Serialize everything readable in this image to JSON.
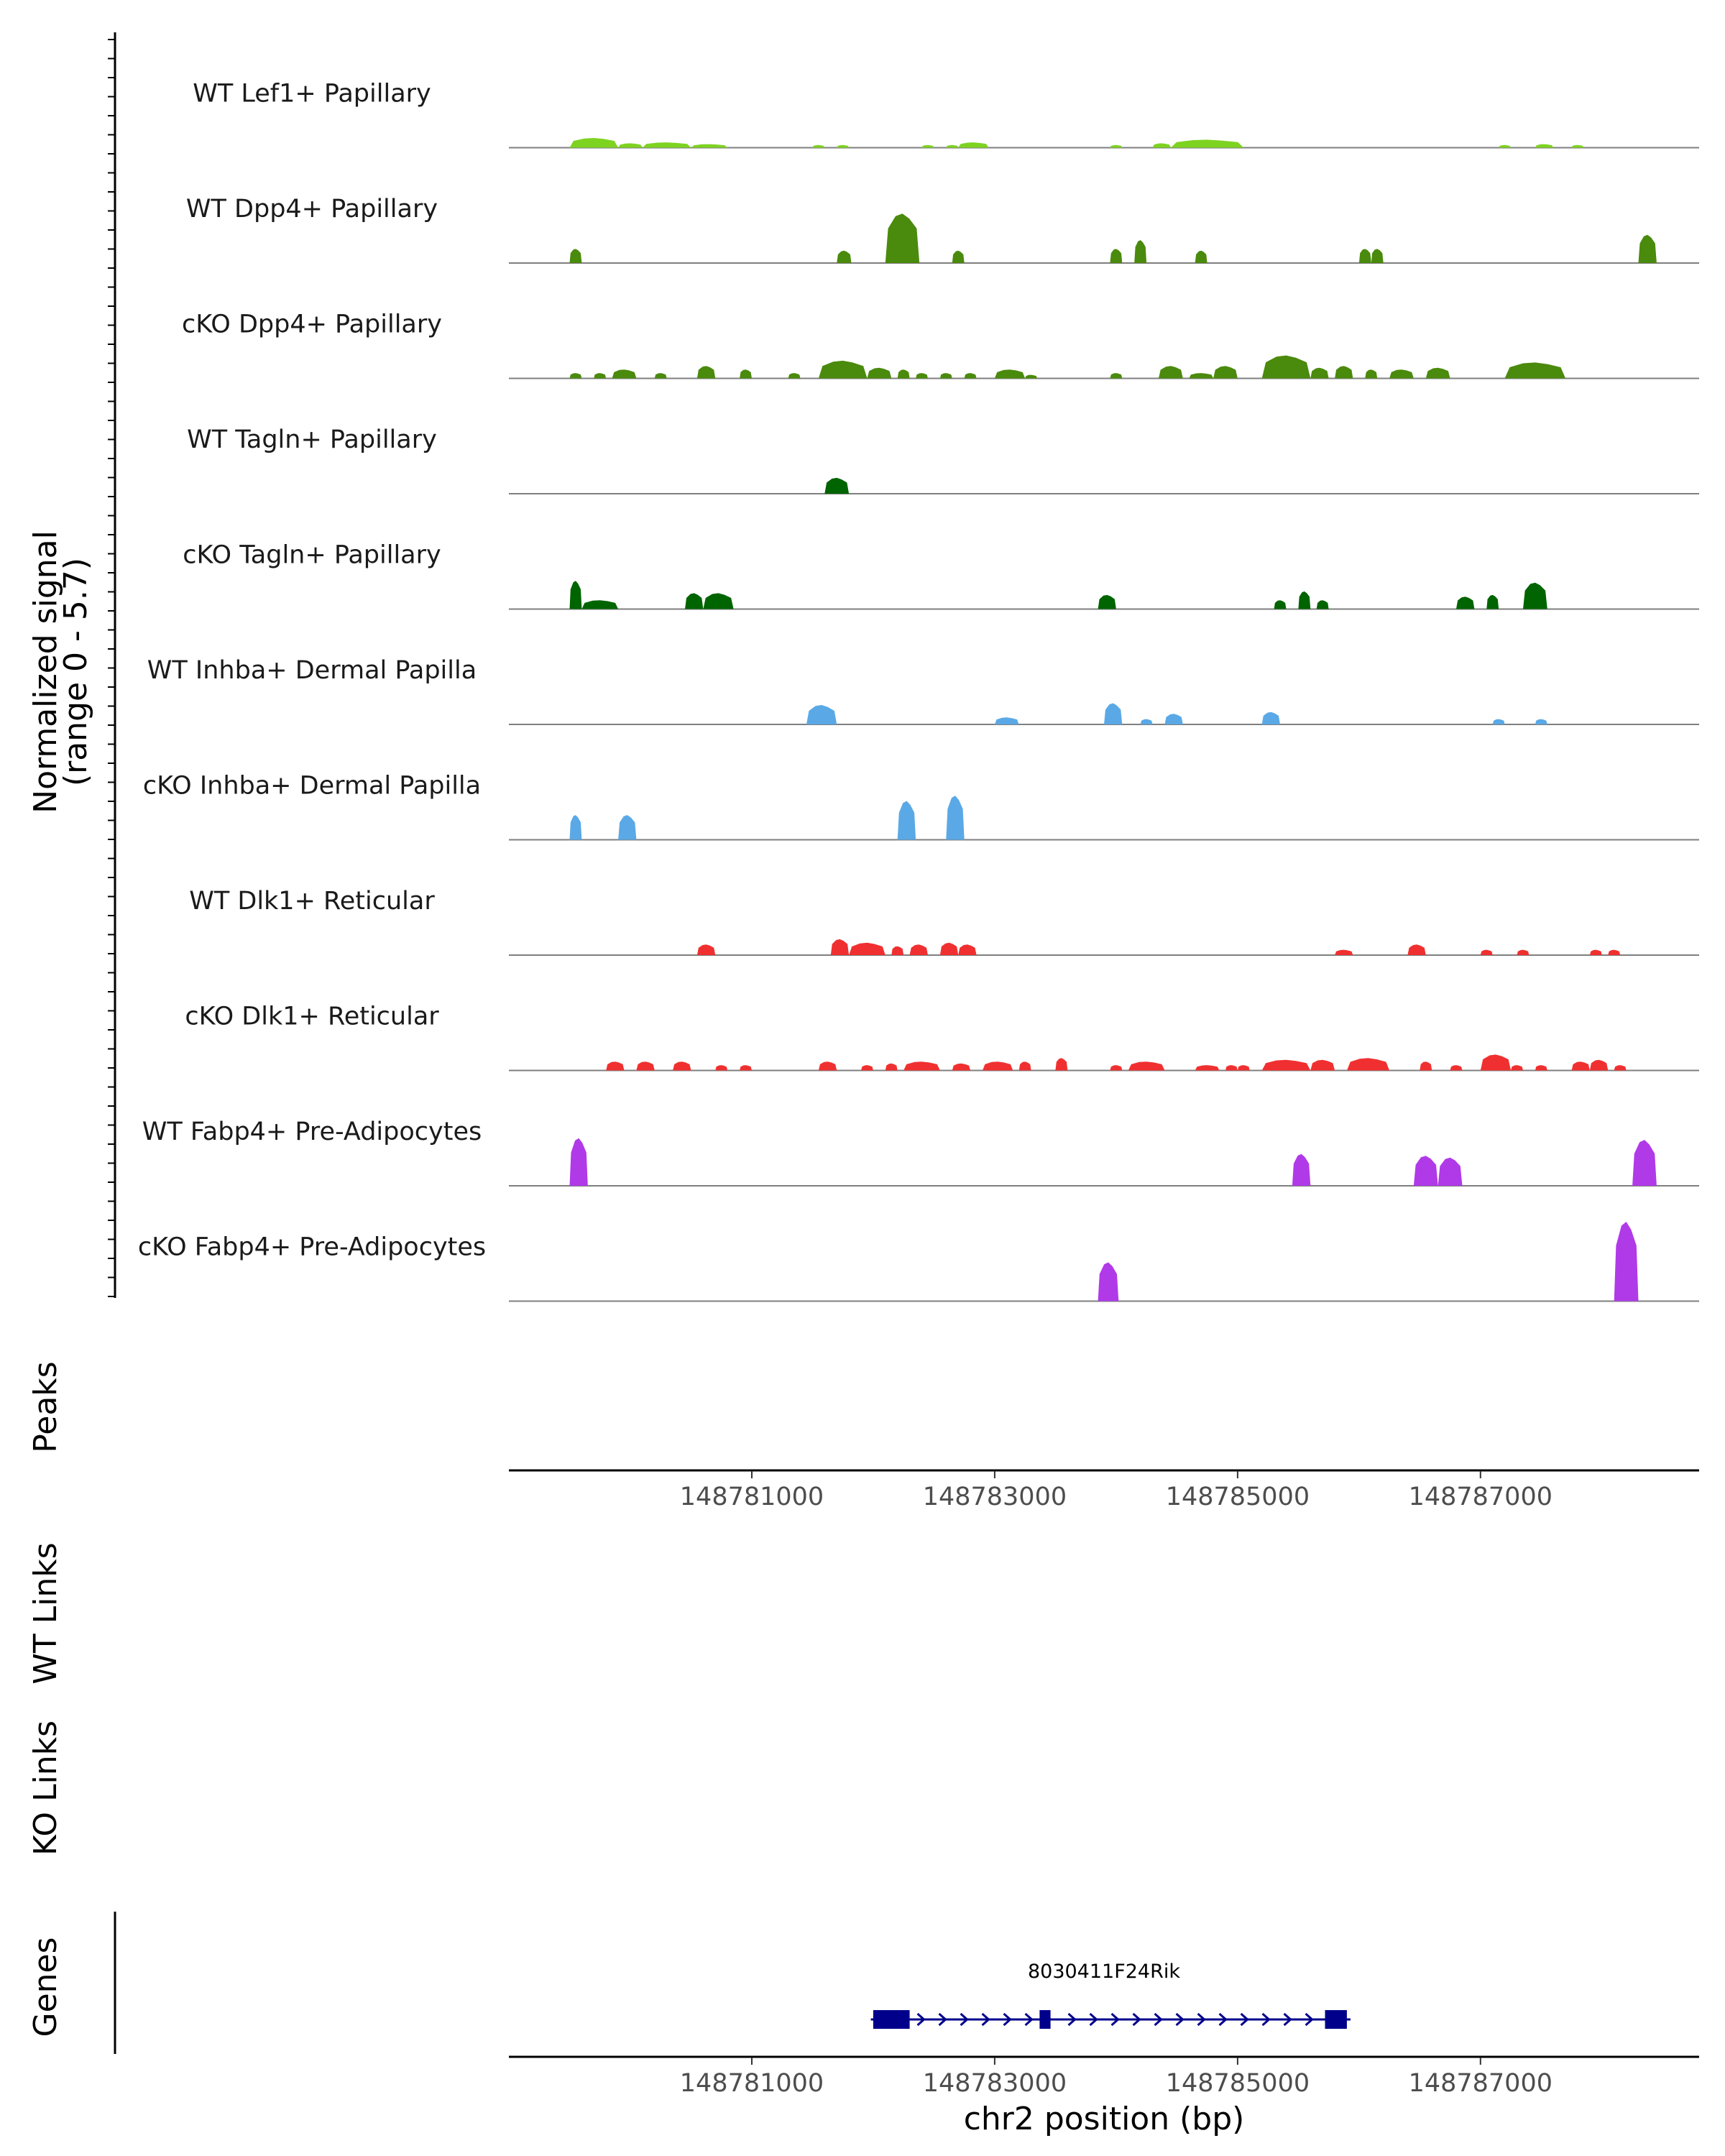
{
  "chart_data": {
    "type": "area",
    "title": "",
    "y_axis_label": "Normalized signal",
    "y_axis_range_label": "(range 0 - 5.7)",
    "ylim": [
      0,
      5.7
    ],
    "x_axis": {
      "label": "chr2 position (bp)",
      "range": [
        148779000,
        148788800
      ],
      "ticks": [
        148781000,
        148783000,
        148785000,
        148787000
      ],
      "tick_labels": [
        "148781000",
        "148783000",
        "148785000",
        "148787000"
      ]
    },
    "tracks": [
      {
        "name": "WT Lef1+ Papillary",
        "color": "#7ed321",
        "peaks": [
          [
            148779500,
            148779900,
            0.55
          ],
          [
            148779900,
            148780100,
            0.25
          ],
          [
            148780100,
            148780500,
            0.3
          ],
          [
            148780500,
            148780800,
            0.2
          ],
          [
            148781500,
            148781600,
            0.15
          ],
          [
            148781700,
            148781800,
            0.15
          ],
          [
            148782400,
            148782500,
            0.15
          ],
          [
            148782600,
            148782700,
            0.15
          ],
          [
            148782700,
            148782950,
            0.3
          ],
          [
            148783950,
            148784050,
            0.15
          ],
          [
            148784300,
            148784450,
            0.25
          ],
          [
            148784450,
            148785050,
            0.45
          ],
          [
            148787150,
            148787250,
            0.15
          ],
          [
            148787450,
            148787600,
            0.2
          ],
          [
            148787750,
            148787850,
            0.15
          ]
        ]
      },
      {
        "name": "WT Dpp4+ Papillary",
        "color": "#4a8a0c",
        "peaks": [
          [
            148779500,
            148779600,
            0.8
          ],
          [
            148781700,
            148781820,
            0.7
          ],
          [
            148782100,
            148782380,
            2.8
          ],
          [
            148782650,
            148782750,
            0.7
          ],
          [
            148783950,
            148784050,
            0.8
          ],
          [
            148784150,
            148784250,
            1.3
          ],
          [
            148784650,
            148784750,
            0.7
          ],
          [
            148786000,
            148786100,
            0.8
          ],
          [
            148786100,
            148786200,
            0.8
          ],
          [
            148788300,
            148788450,
            1.6
          ]
        ]
      },
      {
        "name": "cKO Dpp4+ Papillary",
        "color": "#4a8a0c",
        "peaks": [
          [
            148779500,
            148779600,
            0.3
          ],
          [
            148779700,
            148779800,
            0.3
          ],
          [
            148779850,
            148780050,
            0.5
          ],
          [
            148780200,
            148780300,
            0.3
          ],
          [
            148780550,
            148780700,
            0.7
          ],
          [
            148780900,
            148781000,
            0.5
          ],
          [
            148781300,
            148781400,
            0.3
          ],
          [
            148781550,
            148781950,
            1.0
          ],
          [
            148781950,
            148782150,
            0.6
          ],
          [
            148782200,
            148782300,
            0.5
          ],
          [
            148782350,
            148782450,
            0.3
          ],
          [
            148782550,
            148782650,
            0.3
          ],
          [
            148782750,
            148782850,
            0.3
          ],
          [
            148783000,
            148783250,
            0.5
          ],
          [
            148783250,
            148783350,
            0.2
          ],
          [
            148783950,
            148784050,
            0.3
          ],
          [
            148784350,
            148784550,
            0.7
          ],
          [
            148784600,
            148784800,
            0.3
          ],
          [
            148784800,
            148785000,
            0.7
          ],
          [
            148785200,
            148785600,
            1.3
          ],
          [
            148785600,
            148785750,
            0.6
          ],
          [
            148785800,
            148785950,
            0.7
          ],
          [
            148786050,
            148786150,
            0.5
          ],
          [
            148786250,
            148786450,
            0.5
          ],
          [
            148786550,
            148786750,
            0.6
          ],
          [
            148787200,
            148787700,
            0.9
          ]
        ]
      },
      {
        "name": "WT Tagln+ Papillary",
        "color": "#006400",
        "peaks": [
          [
            148781600,
            148781800,
            0.9
          ]
        ]
      },
      {
        "name": "cKO Tagln+ Papillary",
        "color": "#006400",
        "peaks": [
          [
            148779500,
            148779600,
            1.6
          ],
          [
            148779600,
            148779900,
            0.5
          ],
          [
            148780450,
            148780600,
            0.9
          ],
          [
            148780600,
            148780850,
            0.9
          ],
          [
            148783850,
            148784000,
            0.8
          ],
          [
            148785300,
            148785400,
            0.5
          ],
          [
            148785500,
            148785600,
            1.0
          ],
          [
            148785650,
            148785750,
            0.5
          ],
          [
            148786800,
            148786950,
            0.7
          ],
          [
            148787050,
            148787150,
            0.8
          ],
          [
            148787350,
            148787550,
            1.5
          ]
        ]
      },
      {
        "name": "WT Inhba+ Dermal Papilla",
        "color": "#5aa9e6",
        "peaks": [
          [
            148781450,
            148781700,
            1.1
          ],
          [
            148783000,
            148783200,
            0.4
          ],
          [
            148783900,
            148784050,
            1.2
          ],
          [
            148784200,
            148784300,
            0.3
          ],
          [
            148784400,
            148784550,
            0.6
          ],
          [
            148785200,
            148785350,
            0.7
          ],
          [
            148787100,
            148787200,
            0.3
          ],
          [
            148787450,
            148787550,
            0.3
          ]
        ]
      },
      {
        "name": "cKO Inhba+ Dermal Papilla",
        "color": "#5aa9e6",
        "peaks": [
          [
            148779500,
            148779600,
            1.4
          ],
          [
            148779900,
            148780050,
            1.4
          ],
          [
            148782200,
            148782350,
            2.2
          ],
          [
            148782600,
            148782750,
            2.5
          ]
        ]
      },
      {
        "name": "WT Dlk1+ Reticular",
        "color": "#f03030",
        "peaks": [
          [
            148780550,
            148780700,
            0.6
          ],
          [
            148781650,
            148781800,
            0.9
          ],
          [
            148781800,
            148782100,
            0.7
          ],
          [
            148782150,
            148782250,
            0.5
          ],
          [
            148782300,
            148782450,
            0.6
          ],
          [
            148782550,
            148782700,
            0.7
          ],
          [
            148782700,
            148782850,
            0.6
          ],
          [
            148785800,
            148785950,
            0.3
          ],
          [
            148786400,
            148786550,
            0.6
          ],
          [
            148787000,
            148787100,
            0.3
          ],
          [
            148787300,
            148787400,
            0.3
          ],
          [
            148787900,
            148788000,
            0.3
          ],
          [
            148788050,
            148788150,
            0.3
          ]
        ]
      },
      {
        "name": "cKO Dlk1+ Reticular",
        "color": "#f03030",
        "peaks": [
          [
            148779800,
            148779950,
            0.5
          ],
          [
            148780050,
            148780200,
            0.5
          ],
          [
            148780350,
            148780500,
            0.5
          ],
          [
            148780700,
            148780800,
            0.3
          ],
          [
            148780900,
            148781000,
            0.3
          ],
          [
            148781550,
            148781700,
            0.5
          ],
          [
            148781900,
            148782000,
            0.3
          ],
          [
            148782100,
            148782200,
            0.4
          ],
          [
            148782250,
            148782550,
            0.5
          ],
          [
            148782650,
            148782800,
            0.4
          ],
          [
            148782900,
            148783150,
            0.5
          ],
          [
            148783200,
            148783300,
            0.5
          ],
          [
            148783500,
            148783600,
            0.7
          ],
          [
            148783950,
            148784050,
            0.3
          ],
          [
            148784100,
            148784400,
            0.5
          ],
          [
            148784650,
            148784850,
            0.3
          ],
          [
            148784900,
            148785000,
            0.3
          ],
          [
            148785000,
            148785100,
            0.3
          ],
          [
            148785200,
            148785600,
            0.6
          ],
          [
            148785600,
            148785800,
            0.6
          ],
          [
            148785900,
            148786250,
            0.7
          ],
          [
            148786500,
            148786600,
            0.5
          ],
          [
            148786750,
            148786850,
            0.3
          ],
          [
            148787000,
            148787250,
            0.9
          ],
          [
            148787250,
            148787350,
            0.3
          ],
          [
            148787450,
            148787550,
            0.3
          ],
          [
            148787750,
            148787900,
            0.5
          ],
          [
            148787900,
            148788050,
            0.6
          ],
          [
            148788100,
            148788200,
            0.3
          ]
        ]
      },
      {
        "name": "WT Fabp4+ Pre-Adipocytes",
        "color": "#b03ae8",
        "peaks": [
          [
            148779500,
            148779650,
            2.7
          ],
          [
            148785450,
            148785600,
            1.8
          ],
          [
            148786450,
            148786650,
            1.7
          ],
          [
            148786650,
            148786850,
            1.6
          ],
          [
            148788250,
            148788450,
            2.6
          ]
        ]
      },
      {
        "name": "cKO Fabp4+ Pre-Adipocytes",
        "color": "#b03ae8",
        "peaks": [
          [
            148783850,
            148784020,
            2.2
          ],
          [
            148788100,
            148788300,
            4.5
          ]
        ]
      }
    ],
    "side_labels": {
      "peaks": "Peaks",
      "wt_links": "WT Links",
      "ko_links": "KO Links",
      "genes": "Genes"
    },
    "gene": {
      "name": "8030411F24Rik",
      "strand": "+",
      "start": 148781980,
      "end": 148785930,
      "exons": [
        [
          148782000,
          148782300
        ],
        [
          148783370,
          148783460
        ],
        [
          148785720,
          148785900
        ]
      ]
    }
  }
}
